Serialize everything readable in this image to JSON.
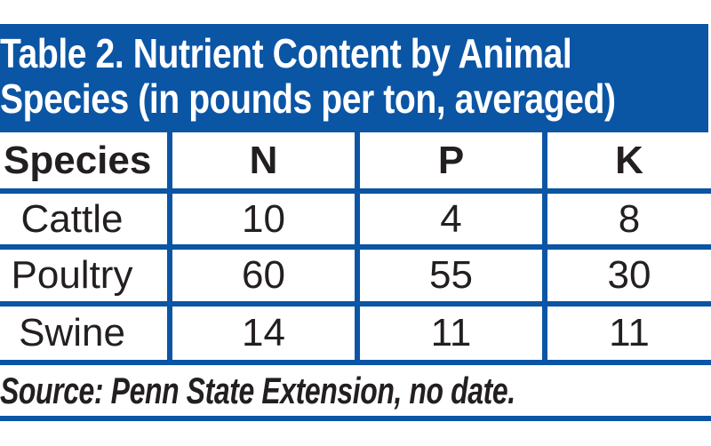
{
  "colors": {
    "table_blue": "#0B55A5",
    "text_dark": "#231F20",
    "page_bg": "#FFFFFF",
    "title_text": "#FFFFFF"
  },
  "title": {
    "line1": "Table 2. Nutrient Content by Animal",
    "line2": "Species (in pounds per ton, averaged)",
    "full": "Table 2. Nutrient Content by Animal Species (in pounds per ton, averaged)"
  },
  "table": {
    "columns": [
      "Species",
      "N",
      "P",
      "K"
    ],
    "rows": [
      {
        "species": "Cattle",
        "n": "10",
        "p": "4",
        "k": "8"
      },
      {
        "species": "Poultry",
        "n": "60",
        "p": "55",
        "k": "30"
      },
      {
        "species": "Swine",
        "n": "14",
        "p": "11",
        "k": "11"
      }
    ]
  },
  "source": {
    "text": "Source: Penn State Extension, no date."
  },
  "chart_data": {
    "type": "table",
    "title": "Table 2. Nutrient Content by Animal Species (in pounds per ton, averaged)",
    "columns": [
      "Species",
      "N",
      "P",
      "K"
    ],
    "rows": [
      [
        "Cattle",
        10,
        4,
        8
      ],
      [
        "Poultry",
        60,
        55,
        30
      ],
      [
        "Swine",
        14,
        11,
        11
      ]
    ],
    "source": "Source: Penn State Extension, no date."
  }
}
